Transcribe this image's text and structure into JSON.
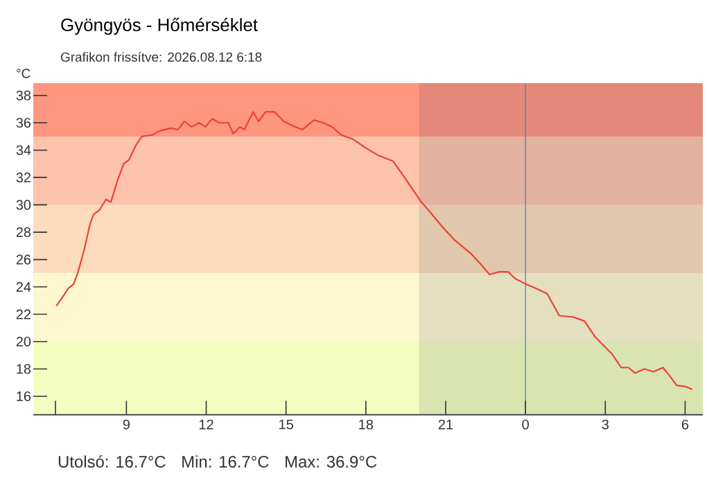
{
  "chart_data": {
    "type": "line",
    "title": "Gyöngyös - Hőmérséklet",
    "subtitle": "Grafikon frissítve: 2026.08.12 6:18",
    "ylabel": "°C",
    "annotations": [
      "Utolsó: 16.7°C",
      "Min: 16.7°C",
      "Max: 36.9°C"
    ],
    "x": [
      "2026-08-11T06:22",
      "2026-08-11T06:35",
      "2026-08-11T06:49",
      "2026-08-11T07:01",
      "2026-08-11T07:11",
      "2026-08-11T07:24",
      "2026-08-11T07:38",
      "2026-08-11T07:46",
      "2026-08-11T07:59",
      "2026-08-11T08:14",
      "2026-08-11T08:25",
      "2026-08-11T08:40",
      "2026-08-11T08:54",
      "2026-08-11T09:06",
      "2026-08-11T09:22",
      "2026-08-11T09:35",
      "2026-08-11T09:58",
      "2026-08-11T10:14",
      "2026-08-11T10:40",
      "2026-08-11T10:56",
      "2026-08-11T11:11",
      "2026-08-11T11:27",
      "2026-08-11T11:44",
      "2026-08-11T11:58",
      "2026-08-11T12:14",
      "2026-08-11T12:29",
      "2026-08-11T12:50",
      "2026-08-11T13:01",
      "2026-08-11T13:16",
      "2026-08-11T13:26",
      "2026-08-11T13:46",
      "2026-08-11T13:58",
      "2026-08-11T14:14",
      "2026-08-11T14:34",
      "2026-08-11T14:55",
      "2026-08-11T15:21",
      "2026-08-11T15:37",
      "2026-08-11T16:03",
      "2026-08-11T16:24",
      "2026-08-11T16:44",
      "2026-08-11T17:05",
      "2026-08-11T17:31",
      "2026-08-11T17:58",
      "2026-08-11T18:29",
      "2026-08-11T19:01",
      "2026-08-11T19:21",
      "2026-08-11T19:42",
      "2026-08-11T20:03",
      "2026-08-11T20:24",
      "2026-08-11T20:55",
      "2026-08-11T21:21",
      "2026-08-11T21:58",
      "2026-08-11T22:18",
      "2026-08-11T22:39",
      "2026-08-11T23:00",
      "2026-08-11T23:21",
      "2026-08-11T23:37",
      "2026-08-12T00:01",
      "2026-08-12T00:23",
      "2026-08-12T00:49",
      "2026-08-12T01:16",
      "2026-08-12T01:47",
      "2026-08-12T02:13",
      "2026-08-12T02:38",
      "2026-08-12T03:15",
      "2026-08-12T03:36",
      "2026-08-12T03:52",
      "2026-08-12T04:07",
      "2026-08-12T04:28",
      "2026-08-12T04:49",
      "2026-08-12T05:10",
      "2026-08-12T05:25",
      "2026-08-12T05:41",
      "2026-08-12T06:02",
      "2026-08-12T06:16"
    ],
    "series": [
      {
        "color": "#ee4035",
        "values": [
          22.6,
          23.2,
          23.9,
          24.2,
          25.1,
          26.6,
          28.6,
          29.3,
          29.6,
          30.4,
          30.2,
          31.8,
          33.0,
          33.3,
          34.4,
          35.0,
          35.1,
          35.4,
          35.6,
          35.5,
          36.1,
          35.7,
          36.0,
          35.7,
          36.3,
          36.0,
          36.0,
          35.2,
          35.7,
          35.5,
          36.8,
          36.1,
          36.8,
          36.8,
          36.1,
          35.7,
          35.5,
          36.2,
          36.0,
          35.7,
          35.1,
          34.8,
          34.2,
          33.6,
          33.2,
          32.3,
          31.3,
          30.3,
          29.5,
          28.3,
          27.4,
          26.4,
          25.7,
          24.9,
          25.1,
          25.1,
          24.6,
          24.2,
          23.9,
          23.5,
          21.9,
          21.8,
          21.5,
          20.3,
          19.1,
          18.1,
          18.1,
          17.7,
          18.0,
          17.8,
          18.1,
          17.5,
          16.8,
          16.7,
          16.5
        ]
      }
    ],
    "xlim": [
      "2026-08-11T05:30",
      "2026-08-12T06:40"
    ],
    "ylim": [
      14.65,
      38.9
    ],
    "xticks": [
      {
        "value": "2026-08-11T06:20",
        "label": null
      },
      {
        "value": "2026-08-11T09:00",
        "label": "9"
      },
      {
        "value": "2026-08-11T12:00",
        "label": "12"
      },
      {
        "value": "2026-08-11T15:00",
        "label": "15"
      },
      {
        "value": "2026-08-11T18:00",
        "label": "18"
      },
      {
        "value": "2026-08-11T21:00",
        "label": "21"
      },
      {
        "value": "2026-08-12T00:00",
        "label": "0"
      },
      {
        "value": "2026-08-12T03:00",
        "label": "3"
      },
      {
        "value": "2026-08-12T06:00",
        "label": "6"
      }
    ],
    "yticks": [
      16,
      18,
      20,
      22,
      24,
      26,
      28,
      30,
      32,
      34,
      36,
      38
    ],
    "bands": [
      {
        "axis": "y",
        "from": 35,
        "to": 38.9,
        "color": "#ff9680"
      },
      {
        "axis": "y",
        "from": 30,
        "to": 35,
        "color": "#fec3ab"
      },
      {
        "axis": "y",
        "from": 25,
        "to": 30,
        "color": "#fcdcbc"
      },
      {
        "axis": "y",
        "from": 20,
        "to": 25,
        "color": "#fef7d0"
      },
      {
        "axis": "y",
        "from": 14.65,
        "to": 20,
        "color": "#f3fdc0"
      },
      {
        "axis": "x",
        "from": "2026-08-11T20:00",
        "to": "2026-08-12T06:40",
        "color": "#1e3246"
      }
    ],
    "ref_lines": [
      {
        "axis": "x",
        "value": "2026-08-12T00:00",
        "color": "#3b7dbf"
      }
    ],
    "marker": "none",
    "line_style": "solid"
  }
}
